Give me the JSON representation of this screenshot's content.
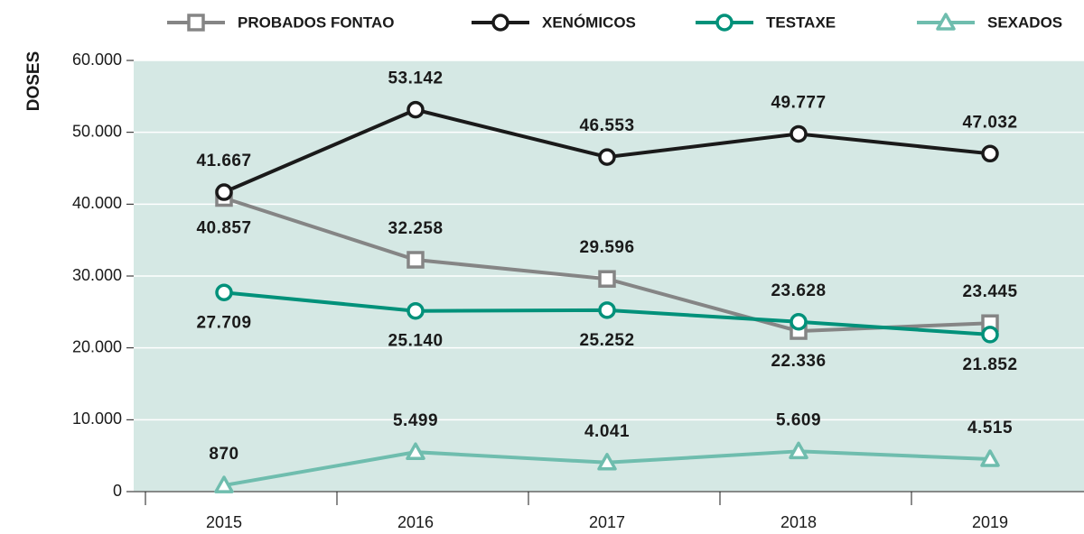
{
  "chart_data": {
    "type": "line",
    "y_label": "DOSES",
    "categories": [
      "2015",
      "2016",
      "2017",
      "2018",
      "2019"
    ],
    "ylim": [
      0,
      60000
    ],
    "yticks": [
      0,
      {
        "value": 10000,
        "label": "10.000"
      },
      {
        "value": 20000,
        "label": "20.000"
      },
      {
        "value": 30000,
        "label": "30.000"
      },
      {
        "value": 40000,
        "label": "40.000"
      },
      {
        "value": 50000,
        "label": "50.000"
      },
      {
        "value": 60000,
        "label": "60.000"
      }
    ],
    "grid": true,
    "legend": "top",
    "series": [
      {
        "name": "PROBADOS FONTAO",
        "color": "#858585",
        "marker": "square",
        "values": [
          40857,
          32258,
          29596,
          22336,
          23445
        ],
        "value_labels": [
          "40.857",
          "32.258",
          "29.596",
          "22.336",
          "23.445"
        ]
      },
      {
        "name": "XENÓMICOS",
        "color": "#1a1a1a",
        "marker": "circle",
        "values": [
          41667,
          53142,
          46553,
          49777,
          47032
        ],
        "value_labels": [
          "41.667",
          "53.142",
          "46.553",
          "49.777",
          "47.032"
        ]
      },
      {
        "name": "TESTAXE",
        "color": "#00917a",
        "marker": "circle",
        "values": [
          27709,
          25140,
          25252,
          23628,
          21852
        ],
        "value_labels": [
          "27.709",
          "25.140",
          "25.252",
          "23.628",
          "21.852"
        ]
      },
      {
        "name": "SEXADOS",
        "color": "#6fbdae",
        "marker": "triangle",
        "values": [
          870,
          5499,
          4041,
          5609,
          4515
        ],
        "value_labels": [
          "870",
          "5.499",
          "4.041",
          "5.609",
          "4.515"
        ]
      }
    ]
  }
}
